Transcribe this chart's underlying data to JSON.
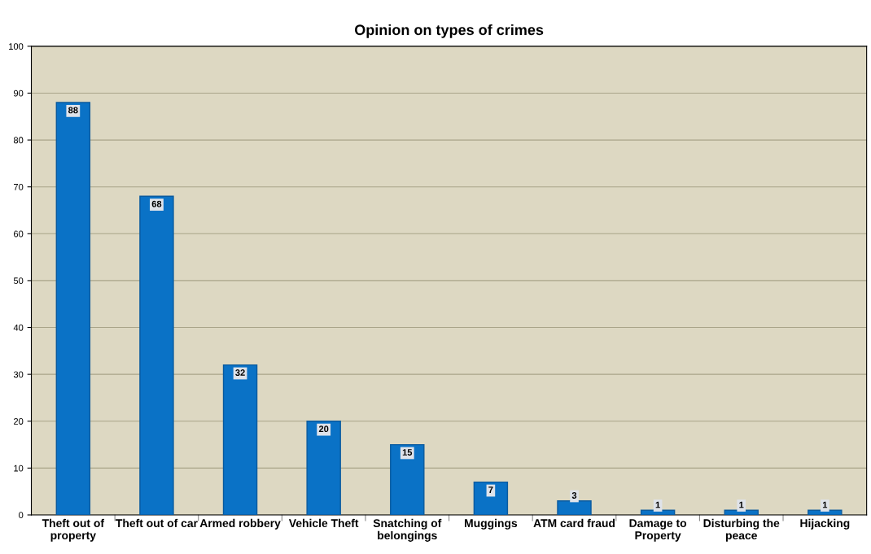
{
  "chart_data": {
    "type": "bar",
    "title": "Opinion on types of crimes",
    "categories": [
      "Theft out of\nproperty",
      "Theft out of car",
      "Armed robbery",
      "Vehicle Theft",
      "Snatching of\nbelongings",
      "Muggings",
      "ATM card fraud",
      "Damage to\nProperty",
      "Disturbing the\npeace",
      "Hijacking"
    ],
    "values": [
      88,
      68,
      32,
      20,
      15,
      7,
      3,
      1,
      1,
      1
    ],
    "color": "#0a72c6",
    "ylim": [
      0,
      100
    ],
    "yticks": [
      0,
      10,
      20,
      30,
      40,
      50,
      60,
      70,
      80,
      90,
      100
    ],
    "grid": "y",
    "legend": false,
    "data_labels": true
  }
}
